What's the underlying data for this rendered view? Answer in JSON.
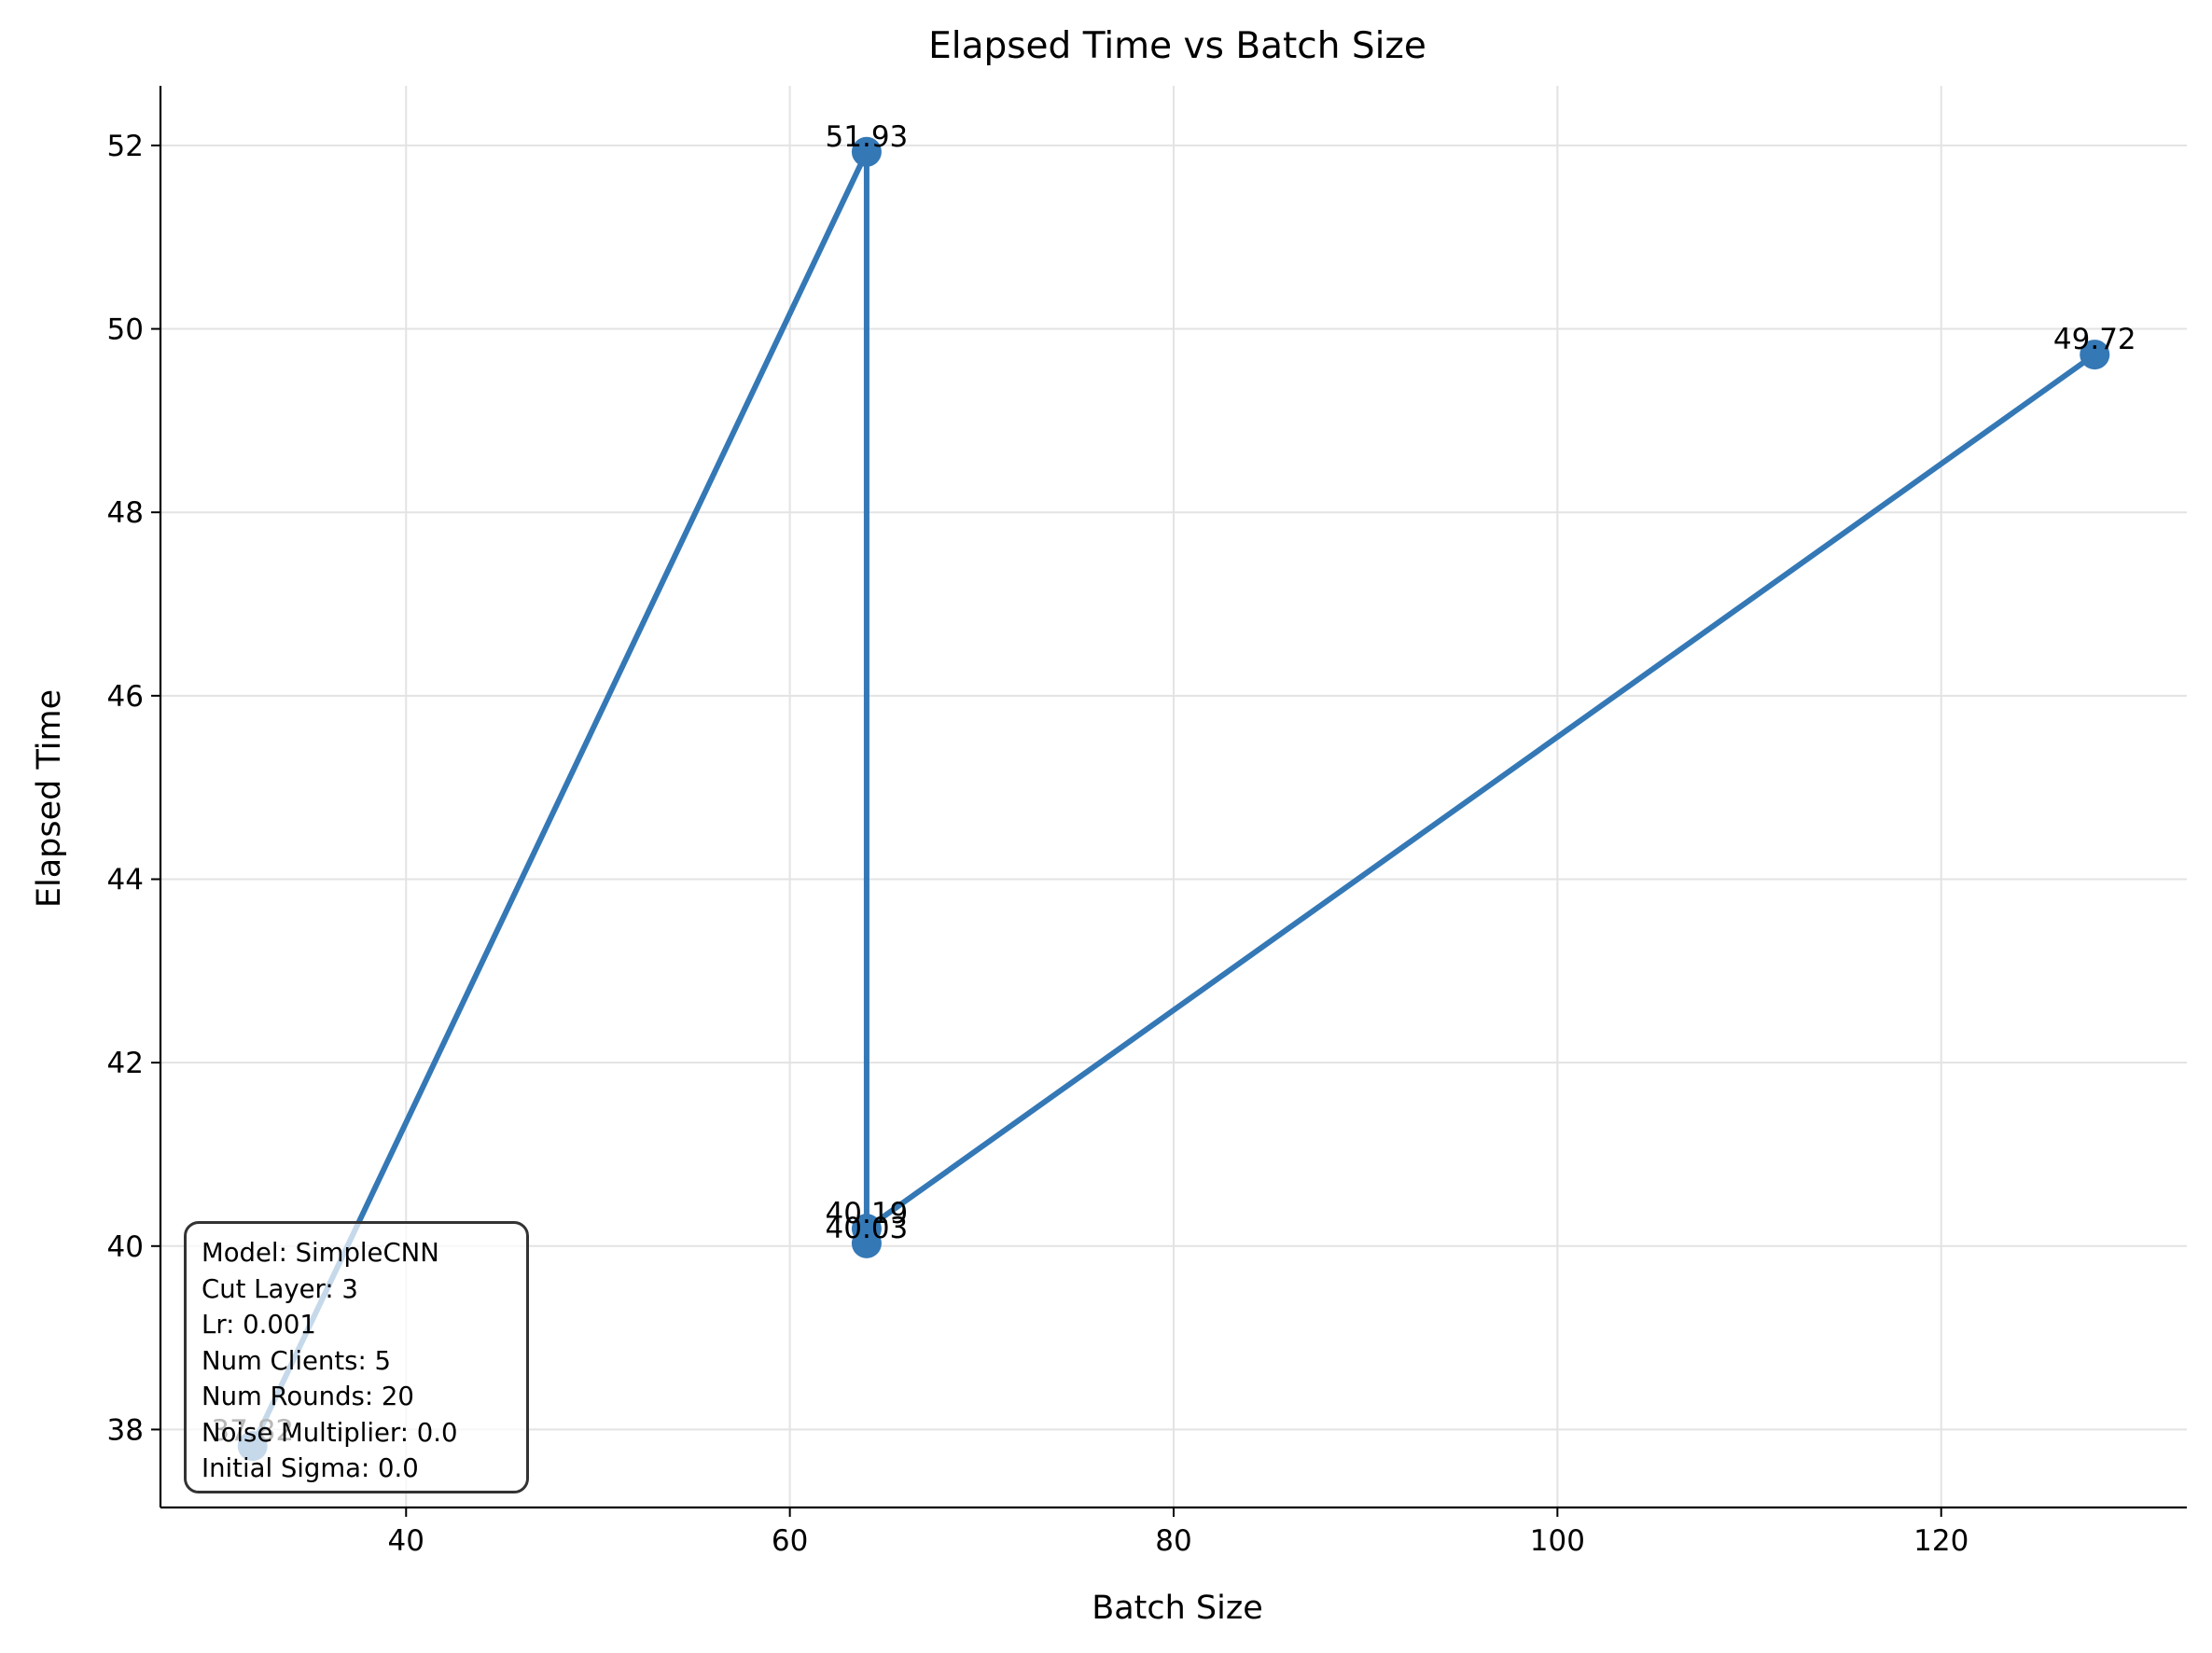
{
  "chart_data": {
    "type": "line",
    "title": "Elapsed Time vs Batch Size",
    "xlabel": "Batch Size",
    "ylabel": "Elapsed Time",
    "xlim": [
      27.2,
      132.8
    ],
    "ylim": [
      37.15,
      52.65
    ],
    "x_ticks": [
      40,
      60,
      80,
      100,
      120
    ],
    "y_ticks": [
      38,
      40,
      42,
      44,
      46,
      48,
      50,
      52
    ],
    "grid": true,
    "line_color": "#3478b6",
    "points": [
      {
        "x": 32,
        "y": 37.82,
        "label": "37.82"
      },
      {
        "x": 64,
        "y": 51.93,
        "label": "51.93"
      },
      {
        "x": 64,
        "y": 40.03,
        "label": "40.03"
      },
      {
        "x": 64,
        "y": 40.19,
        "label": "40.19"
      },
      {
        "x": 128,
        "y": 49.72,
        "label": "49.72"
      }
    ]
  },
  "info_box": {
    "lines": [
      "Model: SimpleCNN",
      "Cut Layer: 3",
      "Lr: 0.001",
      "Num Clients: 5",
      "Num Rounds: 20",
      "Noise Multiplier: 0.0",
      "Initial Sigma: 0.0"
    ]
  }
}
